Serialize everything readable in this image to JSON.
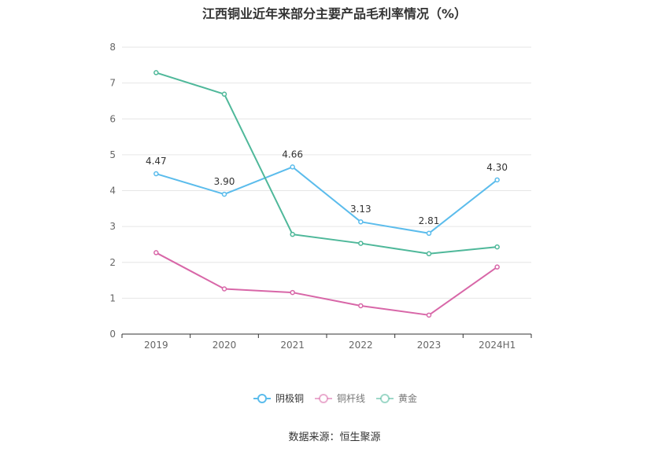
{
  "title": "江西铜业近年来部分主要产品毛利率情况（%）",
  "source": "数据来源：恒生聚源",
  "colors": {
    "grid": "#e6e6e6",
    "axis": "#333333",
    "tick": "#666666"
  },
  "chart_data": {
    "type": "line",
    "title": "江西铜业近年来部分主要产品毛利率情况（%）",
    "categories": [
      "2019",
      "2020",
      "2021",
      "2022",
      "2023",
      "2024H1"
    ],
    "ylim": [
      0,
      8
    ],
    "yticks": [
      "0",
      "1",
      "2",
      "3",
      "4",
      "5",
      "6",
      "7",
      "8"
    ],
    "grid": true,
    "legend_position": "bottom",
    "series": [
      {
        "name": "阴极铜",
        "color": "#5bbcec",
        "show_labels": true,
        "values": [
          4.47,
          3.9,
          4.66,
          3.13,
          2.81,
          4.3
        ],
        "labels": [
          "4.47",
          "3.90",
          "4.66",
          "3.13",
          "2.81",
          "4.30"
        ]
      },
      {
        "name": "铜杆线",
        "color": "#d867a8",
        "show_labels": false,
        "values": [
          2.27,
          1.26,
          1.16,
          0.79,
          0.53,
          1.87
        ]
      },
      {
        "name": "黄金",
        "color": "#4fb89a",
        "show_labels": false,
        "values": [
          7.29,
          6.69,
          2.78,
          2.53,
          2.24,
          2.43
        ]
      }
    ]
  }
}
